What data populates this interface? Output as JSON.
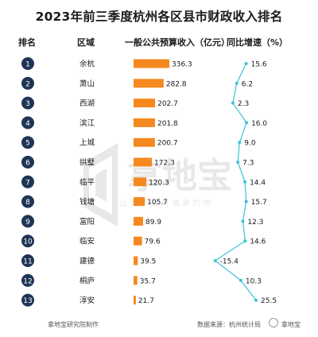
{
  "header": {
    "title": "2023年前三季度杭州各区县市财政收入排名",
    "col_rank": "排名",
    "col_region": "区域",
    "col_revenue": "一般公共预算收入（亿元）",
    "col_growth": "同比增速（%）"
  },
  "watermark": {
    "brand": "拿地宝",
    "slogan": "让 天 下 没 有 难 拿 的 地"
  },
  "footer": {
    "left": "拿地宝研究院制作",
    "source": "数据来源：杭州统计局",
    "logo_text": "拿地宝"
  },
  "colors": {
    "rank_badge": "#1f3556",
    "bar": "#f5891f",
    "line": "#3bc3d9",
    "text": "#1a1a1a"
  },
  "chart_data": {
    "type": "bar",
    "categories": [
      "余杭",
      "萧山",
      "西湖",
      "滨江",
      "上城",
      "拱墅",
      "临平",
      "钱塘",
      "富阳",
      "临安",
      "建德",
      "桐庐",
      "淳安"
    ],
    "ranks": [
      1,
      2,
      3,
      4,
      5,
      6,
      7,
      8,
      9,
      10,
      11,
      12,
      13
    ],
    "series": [
      {
        "name": "一般公共预算收入（亿元）",
        "type": "bar",
        "values": [
          336.3,
          282.8,
          202.7,
          201.8,
          200.7,
          172.3,
          120.3,
          105.7,
          89.9,
          79.6,
          39.5,
          35.7,
          21.7
        ]
      },
      {
        "name": "同比增速（%）",
        "type": "line",
        "values": [
          15.6,
          6.2,
          2.3,
          16.0,
          9.0,
          7.3,
          14.4,
          15.7,
          12.3,
          14.6,
          -15.4,
          10.3,
          25.5
        ]
      }
    ],
    "orientation": "horizontal",
    "grid": false
  }
}
